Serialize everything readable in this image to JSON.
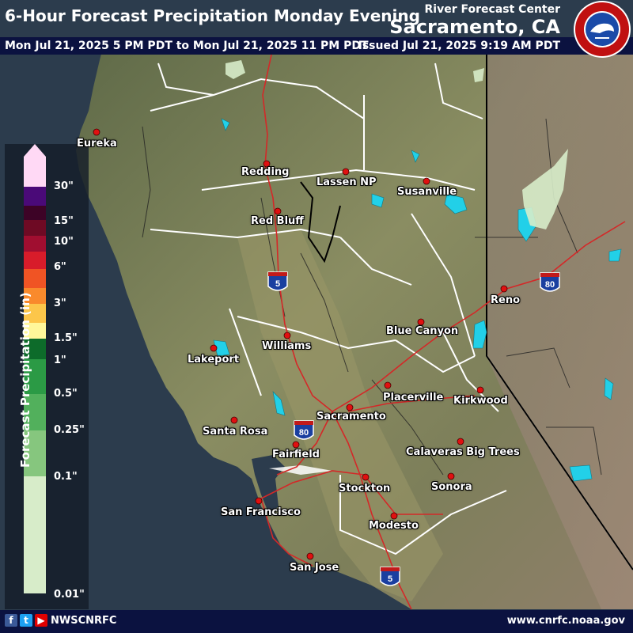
{
  "header": {
    "title": "6-Hour Forecast Precipitation Monday Evening",
    "time_range": "Mon Jul 21, 2025 5 PM PDT to Mon Jul 21, 2025 11 PM PDT",
    "rfc_label": "River Forecast Center",
    "rfc_city": "Sacramento, CA",
    "issued": "Issued Jul 21, 2025 9:19 AM PDT",
    "logo_text": "NATIONAL WEATHER SERVICE"
  },
  "legend": {
    "title": "Forecast Precipitation (in)",
    "labels": [
      "30\"",
      "15\"",
      "10\"",
      "6\"",
      "3\"",
      "1.5\"",
      "1\"",
      "0.5\"",
      "0.25\"",
      "0.1\"",
      "0.01\""
    ],
    "colors": [
      "#ffd9f5",
      "#4a0a78",
      "#3d0326",
      "#6e0a24",
      "#a00e30",
      "#d81c2a",
      "#f05424",
      "#f98a2c",
      "#fcc64a",
      "#fff79a",
      "#0d6b2a",
      "#2b9a45",
      "#52b05c",
      "#86c67e",
      "#b5ddab",
      "#d7ecc9"
    ]
  },
  "cities": [
    {
      "name": "Eureka"
    },
    {
      "name": "Redding"
    },
    {
      "name": "Lassen NP"
    },
    {
      "name": "Susanville"
    },
    {
      "name": "Red Bluff"
    },
    {
      "name": "Reno"
    },
    {
      "name": "Blue Canyon"
    },
    {
      "name": "Williams"
    },
    {
      "name": "Lakeport"
    },
    {
      "name": "Placerville"
    },
    {
      "name": "Kirkwood"
    },
    {
      "name": "Sacramento"
    },
    {
      "name": "Santa Rosa"
    },
    {
      "name": "Calaveras Big Trees"
    },
    {
      "name": "Fairfield"
    },
    {
      "name": "Stockton"
    },
    {
      "name": "Sonora"
    },
    {
      "name": "San Francisco"
    },
    {
      "name": "Modesto"
    },
    {
      "name": "San Jose"
    }
  ],
  "highway_shields": [
    "5",
    "5",
    "80",
    "80",
    "5"
  ],
  "footer": {
    "social_icons": [
      "facebook-icon",
      "twitter-icon",
      "youtube-icon"
    ],
    "handle": "NWSCNRFC",
    "url": "www.cnrfc.noaa.gov"
  },
  "colors": {
    "header_bg": "#0b1240",
    "ocean": "#2a3b4c",
    "land": "#7f8660",
    "lakes": "#22d0e8",
    "roads": "#d42828",
    "borders": "#ffffff",
    "city_dot": "#e01010",
    "precip_light": "#d7ecc9"
  }
}
